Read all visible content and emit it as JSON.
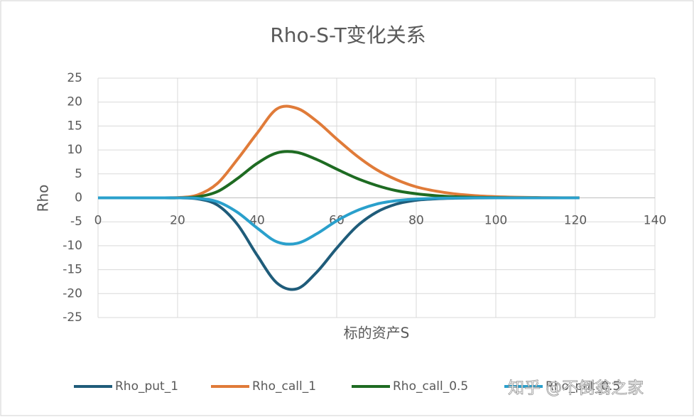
{
  "chart_data": {
    "type": "line",
    "title": "Rho-S-T变化关系",
    "x_label": "标的资产S",
    "y_label": "Rho",
    "x": [
      0,
      5,
      10,
      15,
      20,
      25,
      30,
      35,
      40,
      45,
      50,
      55,
      60,
      65,
      70,
      75,
      80,
      85,
      90,
      95,
      100,
      105,
      110,
      115,
      120,
      121
    ],
    "series": [
      {
        "name": "Rho_put_1",
        "color": "#1f5c7a",
        "values": [
          0,
          0,
          0,
          0,
          0,
          -0.2,
          -1.5,
          -5.5,
          -12,
          -17.8,
          -19,
          -15.5,
          -10.5,
          -6,
          -3,
          -1.3,
          -0.5,
          -0.2,
          -0.07,
          -0.02,
          0,
          0,
          0,
          0,
          0,
          0
        ]
      },
      {
        "name": "Rho_call_1",
        "color": "#e07b39",
        "values": [
          0,
          0,
          0,
          0,
          0.05,
          0.6,
          3,
          8,
          13.5,
          18.6,
          18.7,
          16,
          12.3,
          8.8,
          5.9,
          3.8,
          2.3,
          1.4,
          0.8,
          0.45,
          0.25,
          0.13,
          0.07,
          0.03,
          0.02,
          0.02
        ]
      },
      {
        "name": "Rho_call_0.5",
        "color": "#1e6b22",
        "values": [
          0,
          0,
          0,
          0,
          0,
          0.2,
          1.3,
          4,
          7.2,
          9.4,
          9.5,
          8,
          6,
          4.1,
          2.6,
          1.5,
          0.85,
          0.45,
          0.22,
          0.1,
          0.05,
          0.02,
          0.01,
          0,
          0,
          0
        ]
      },
      {
        "name": "Rho_put_0.5",
        "color": "#2aa0cc",
        "values": [
          0,
          0,
          0,
          0,
          0,
          -0.1,
          -0.8,
          -3,
          -6.3,
          -9.2,
          -9.5,
          -7.5,
          -4.8,
          -2.7,
          -1.3,
          -0.6,
          -0.25,
          -0.1,
          -0.03,
          0,
          0,
          0,
          0,
          0,
          0,
          0
        ]
      }
    ],
    "xlim": [
      0,
      140
    ],
    "xticks": [
      0,
      20,
      40,
      60,
      80,
      100,
      120,
      140
    ],
    "ylim": [
      -25,
      25
    ],
    "yticks": [
      -25,
      -20,
      -15,
      -10,
      -5,
      0,
      5,
      10,
      15,
      20,
      25
    ],
    "grid": true,
    "legend": "bottom",
    "watermark": "知乎 @不倒翁之家"
  }
}
